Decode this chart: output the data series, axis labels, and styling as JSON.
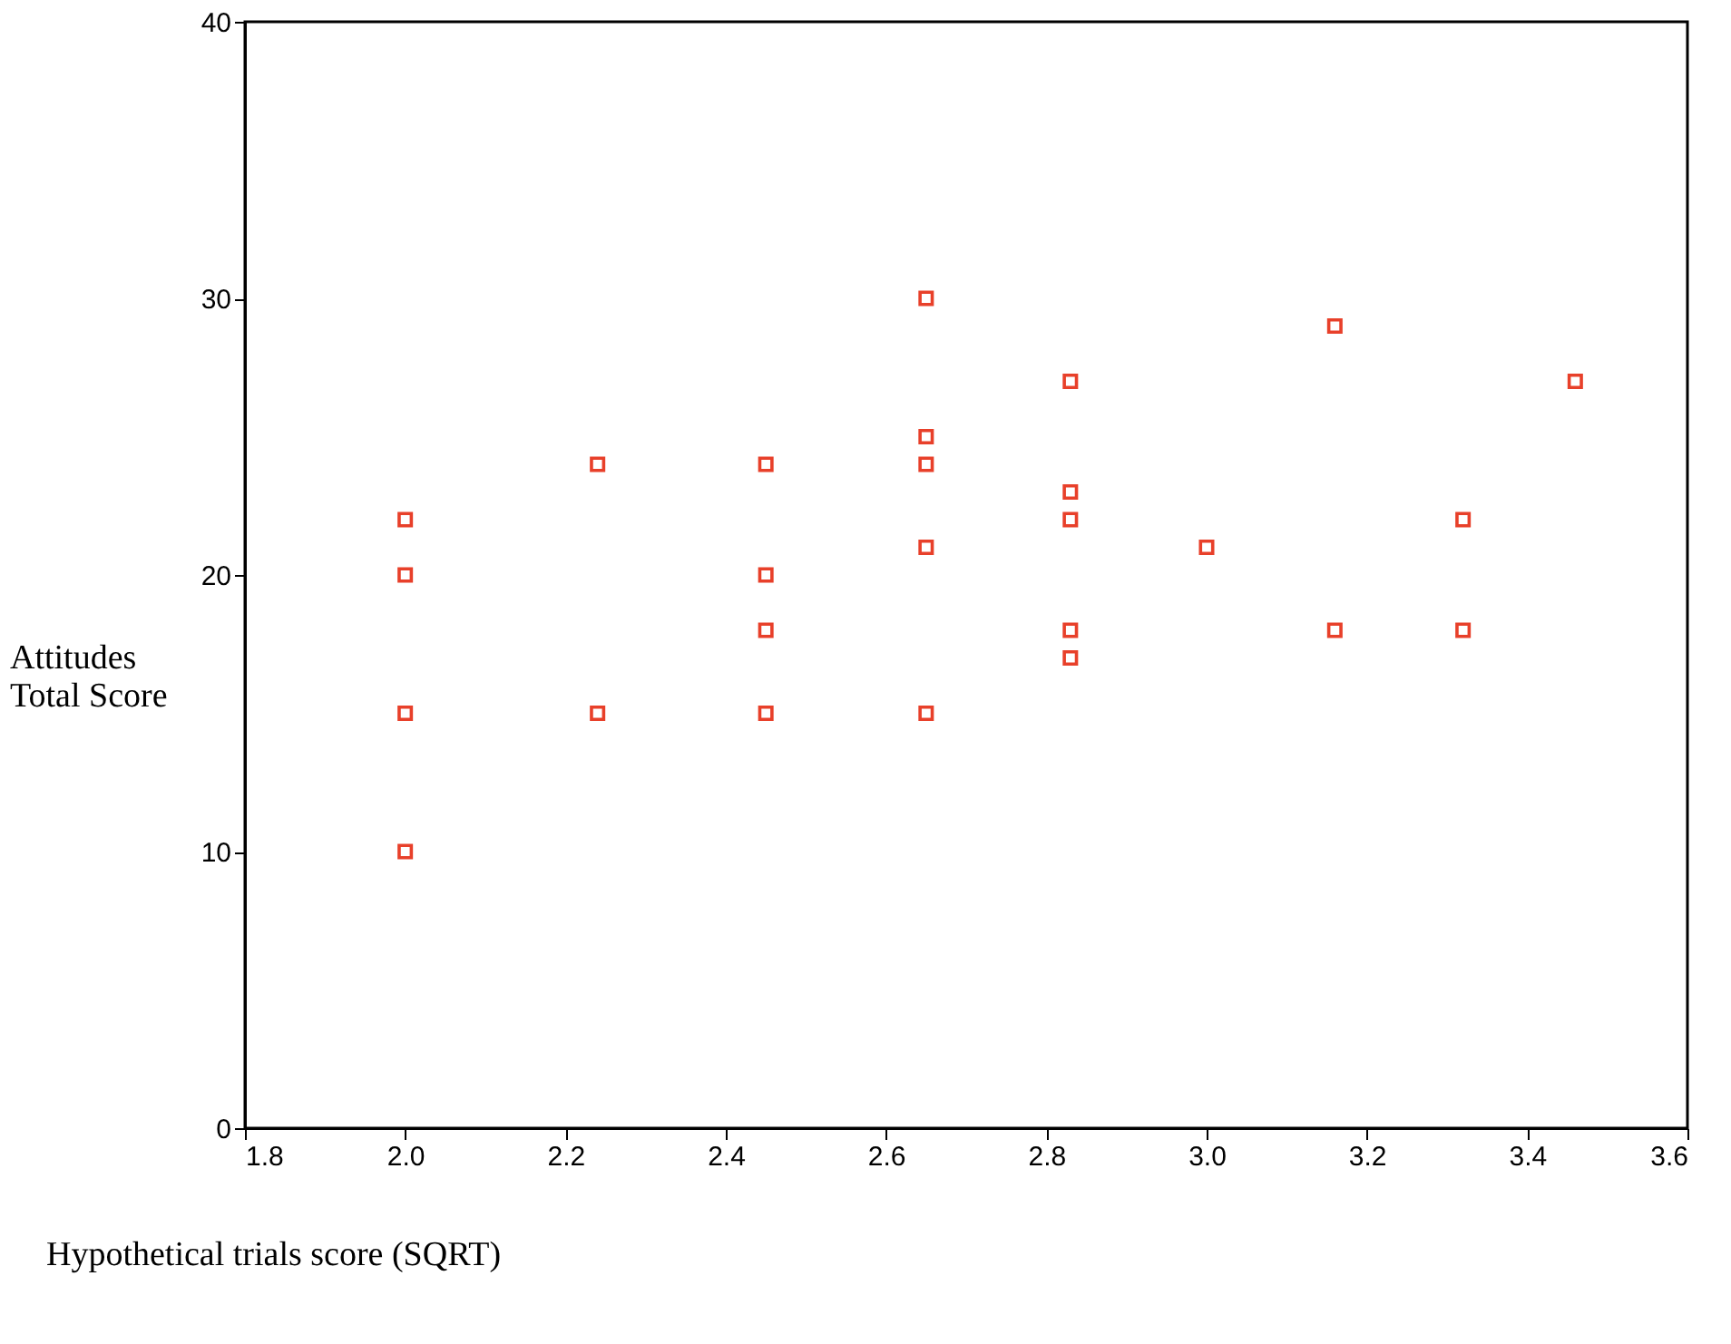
{
  "chart_data": {
    "type": "scatter",
    "xlabel": "Hypothetical trials score (SQRT)",
    "ylabel": "Attitudes\nTotal Score",
    "x": [
      2.0,
      2.0,
      2.0,
      2.0,
      2.24,
      2.24,
      2.45,
      2.45,
      2.45,
      2.45,
      2.65,
      2.65,
      2.65,
      2.65,
      2.65,
      2.83,
      2.83,
      2.83,
      2.83,
      2.83,
      3.0,
      3.16,
      3.16,
      3.32,
      3.32,
      3.46
    ],
    "series": [
      {
        "color": "#e8402a",
        "values": [
          22,
          20,
          15,
          10,
          24,
          15,
          24,
          20,
          18,
          15,
          30,
          25,
          24,
          21,
          15,
          27,
          23,
          22,
          18,
          17,
          21,
          29,
          18,
          22,
          18,
          27
        ]
      }
    ],
    "xlim": [
      1.8,
      3.6
    ],
    "xticks": [
      {
        "value": 1.8,
        "label": "1.8"
      },
      {
        "value": 2.0,
        "label": "2.0"
      },
      {
        "value": 2.2,
        "label": "2.2"
      },
      {
        "value": 2.4,
        "label": "2.4"
      },
      {
        "value": 2.6,
        "label": "2.6"
      },
      {
        "value": 2.8,
        "label": "2.8"
      },
      {
        "value": 3.0,
        "label": "3.0"
      },
      {
        "value": 3.2,
        "label": "3.2"
      },
      {
        "value": 3.4,
        "label": "3.4"
      },
      {
        "value": 3.6,
        "label": "3.6"
      }
    ],
    "ylim": [
      0,
      40
    ],
    "yticks": [
      0,
      10,
      20,
      30,
      40
    ],
    "grid": false,
    "marker": "square"
  }
}
